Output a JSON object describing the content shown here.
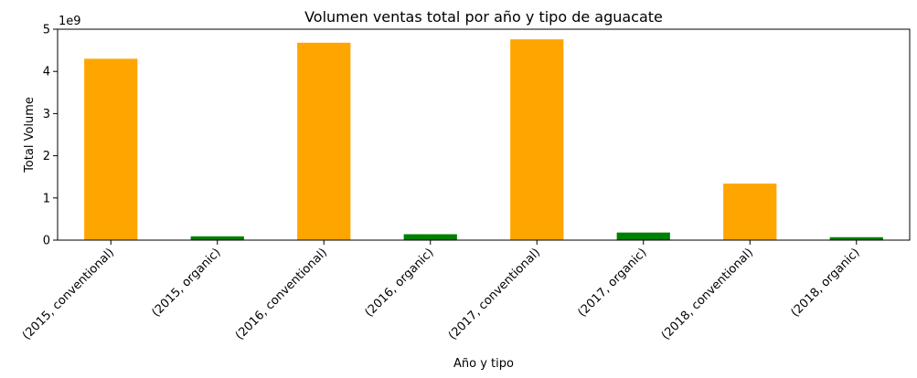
{
  "chart_data": {
    "type": "bar",
    "title": "Volumen ventas total por año y tipo de aguacate",
    "xlabel": "Año y tipo",
    "ylabel": "Total Volume",
    "y_offset_label": "1e9",
    "y_scale": 1000000000,
    "ylim": [
      0,
      5000000000
    ],
    "yticks": [
      0,
      1,
      2,
      3,
      4,
      5
    ],
    "grid": false,
    "categories": [
      "(2015, conventional)",
      "(2015, organic)",
      "(2016, conventional)",
      "(2016, organic)",
      "(2017, conventional)",
      "(2017, organic)",
      "(2018, conventional)",
      "(2018, organic)"
    ],
    "values": [
      4300000000,
      90000000,
      4680000000,
      140000000,
      4760000000,
      180000000,
      1340000000,
      70000000
    ],
    "colors": [
      "#ffa500",
      "#008000",
      "#ffa500",
      "#008000",
      "#ffa500",
      "#008000",
      "#ffa500",
      "#008000"
    ]
  }
}
